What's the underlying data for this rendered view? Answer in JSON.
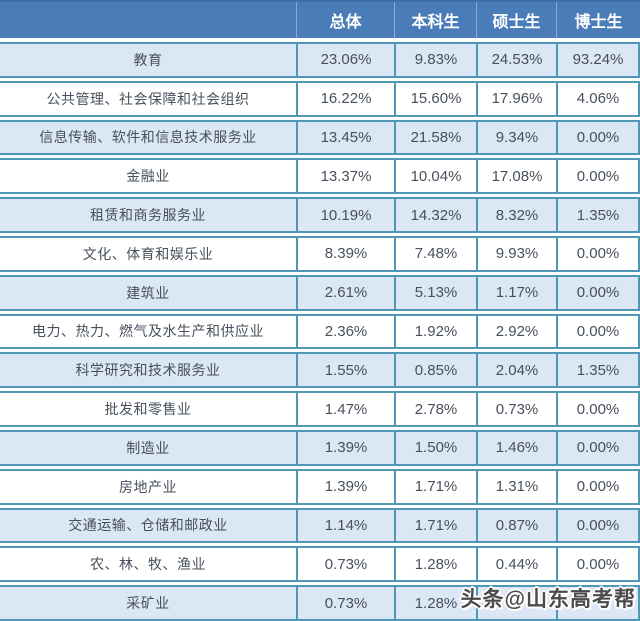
{
  "chart_data": {
    "type": "table",
    "columns": [
      "",
      "总体",
      "本科生",
      "硕士生",
      "博士生"
    ],
    "rows": [
      {
        "label": "教育",
        "values": [
          "23.06%",
          "9.83%",
          "24.53%",
          "93.24%"
        ]
      },
      {
        "label": "公共管理、社会保障和社会组织",
        "values": [
          "16.22%",
          "15.60%",
          "17.96%",
          "4.06%"
        ]
      },
      {
        "label": "信息传输、软件和信息技术服务业",
        "values": [
          "13.45%",
          "21.58%",
          "9.34%",
          "0.00%"
        ]
      },
      {
        "label": "金融业",
        "values": [
          "13.37%",
          "10.04%",
          "17.08%",
          "0.00%"
        ]
      },
      {
        "label": "租赁和商务服务业",
        "values": [
          "10.19%",
          "14.32%",
          "8.32%",
          "1.35%"
        ]
      },
      {
        "label": "文化、体育和娱乐业",
        "values": [
          "8.39%",
          "7.48%",
          "9.93%",
          "0.00%"
        ]
      },
      {
        "label": "建筑业",
        "values": [
          "2.61%",
          "5.13%",
          "1.17%",
          "0.00%"
        ]
      },
      {
        "label": "电力、热力、燃气及水生产和供应业",
        "values": [
          "2.36%",
          "1.92%",
          "2.92%",
          "0.00%"
        ]
      },
      {
        "label": "科学研究和技术服务业",
        "values": [
          "1.55%",
          "0.85%",
          "2.04%",
          "1.35%"
        ]
      },
      {
        "label": "批发和零售业",
        "values": [
          "1.47%",
          "2.78%",
          "0.73%",
          "0.00%"
        ]
      },
      {
        "label": "制造业",
        "values": [
          "1.39%",
          "1.50%",
          "1.46%",
          "0.00%"
        ]
      },
      {
        "label": "房地产业",
        "values": [
          "1.39%",
          "1.71%",
          "1.31%",
          "0.00%"
        ]
      },
      {
        "label": "交通运输、仓储和邮政业",
        "values": [
          "1.14%",
          "1.71%",
          "0.87%",
          "0.00%"
        ]
      },
      {
        "label": "农、林、牧、渔业",
        "values": [
          "0.73%",
          "1.28%",
          "0.44%",
          "0.00%"
        ]
      },
      {
        "label": "采矿业",
        "values": [
          "0.73%",
          "1.28%",
          "",
          ""
        ]
      }
    ]
  },
  "watermark": {
    "text": "头条@山东高考帮"
  },
  "colors": {
    "header_blue": "#4a7db8",
    "row_light_blue": "#dbe7f4",
    "row_white": "#ffffff",
    "grid_teal": "#4f97b5",
    "text": "#47505c",
    "header_text": "#ffffff"
  }
}
